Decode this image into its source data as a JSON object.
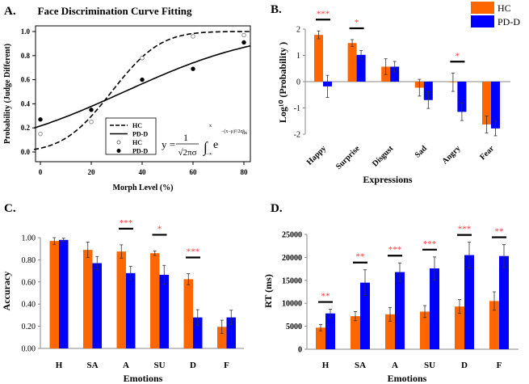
{
  "colors": {
    "hc": "#FF6600",
    "pd": "#0000FF",
    "sig": "#FF3333"
  },
  "chart_data": [
    {
      "panel": "A.",
      "type": "line",
      "title": "Face Discrimination Curve Fitting",
      "xlabel": "Morph Level (%)",
      "ylabel": "Probability (Judge Different)",
      "xlim": [
        -3,
        83
      ],
      "ylim": [
        -0.08,
        1.03
      ],
      "xticks": [
        0,
        20,
        40,
        60,
        80
      ],
      "yticks": [
        "0.0",
        "0.2",
        "0.4",
        "0.6",
        "0.8",
        "1.0"
      ],
      "formula": {
        "lhs": "y =",
        "num": "1",
        "den": "√2πσ",
        "upper": "x",
        "lower": "−∞",
        "base": "e",
        "exp": "−(x−μ)²/2σ²",
        "dx": "dx"
      },
      "legend": [
        "HC",
        "PD-D",
        "HC",
        "PD-D"
      ],
      "fits": [
        {
          "name": "HC",
          "mu": 28,
          "sigma": 15,
          "style": "dashed"
        },
        {
          "name": "PD-D",
          "mu": 33,
          "sigma": 42,
          "style": "solid"
        }
      ],
      "points": [
        {
          "name": "HC",
          "marker": "open",
          "x": [
            0,
            20,
            40,
            60,
            80
          ],
          "y": [
            0.15,
            0.25,
            0.78,
            0.96,
            0.97
          ]
        },
        {
          "name": "PD-D",
          "marker": "filled",
          "x": [
            0,
            20,
            40,
            60,
            80
          ],
          "y": [
            0.27,
            0.35,
            0.6,
            0.69,
            0.91
          ]
        }
      ]
    },
    {
      "panel": "B.",
      "type": "bar",
      "xlabel": "Expressions",
      "ylabel": "Log¹⁰ (Probability )",
      "ylim": [
        -2,
        2
      ],
      "yticks": [
        "-2",
        "-1",
        "0",
        "1",
        "2"
      ],
      "categories": [
        "Happy",
        "Surprise",
        "Disgust",
        "Sad",
        "Angry",
        "Fear"
      ],
      "legend": [
        "HC",
        "PD-D"
      ],
      "series": [
        {
          "name": "HC",
          "values": [
            1.78,
            1.47,
            0.57,
            -0.23,
            -0.02,
            -1.63
          ],
          "errors": [
            0.15,
            0.13,
            0.3,
            0.32,
            0.35,
            0.32
          ]
        },
        {
          "name": "PD-D",
          "values": [
            -0.18,
            1.02,
            0.57,
            -0.7,
            -1.15,
            -1.78
          ],
          "errors": [
            0.42,
            0.16,
            0.2,
            0.32,
            0.33,
            0.28
          ]
        }
      ],
      "significance": [
        "***",
        "*",
        "",
        "",
        "*",
        ""
      ]
    },
    {
      "panel": "C.",
      "type": "bar",
      "xlabel": "Emotions",
      "ylabel": "Accuracy",
      "ylim": [
        0,
        1
      ],
      "yticks": [
        "0.00",
        "0.20",
        "0.40",
        "0.60",
        "0.80",
        "1.00"
      ],
      "categories": [
        "H",
        "SA",
        "A",
        "SU",
        "D",
        "F"
      ],
      "series": [
        {
          "name": "HC",
          "values": [
            0.97,
            0.89,
            0.875,
            0.86,
            0.625,
            0.195
          ],
          "errors": [
            0.03,
            0.07,
            0.06,
            0.02,
            0.05,
            0.06
          ]
        },
        {
          "name": "PD-D",
          "values": [
            0.98,
            0.77,
            0.68,
            0.665,
            0.28,
            0.28
          ],
          "errors": [
            0.015,
            0.06,
            0.06,
            0.085,
            0.07,
            0.065
          ]
        }
      ],
      "significance": [
        "",
        "",
        "***",
        "*",
        "***",
        ""
      ]
    },
    {
      "panel": "D.",
      "type": "bar",
      "xlabel": "Emotions",
      "ylabel": "RT (ms)",
      "ylim": [
        0,
        25000
      ],
      "yticks": [
        "0",
        "5000",
        "10000",
        "15000",
        "20000",
        "25000"
      ],
      "categories": [
        "H",
        "SA",
        "A",
        "SU",
        "D",
        "F"
      ],
      "series": [
        {
          "name": "HC",
          "values": [
            4700,
            7200,
            7600,
            8200,
            9300,
            10500
          ],
          "errors": [
            700,
            1000,
            1500,
            1300,
            1500,
            2000
          ]
        },
        {
          "name": "PD-D",
          "values": [
            7800,
            14500,
            16800,
            17600,
            20500,
            20300
          ],
          "errors": [
            900,
            2800,
            2000,
            2500,
            2800,
            2500
          ]
        }
      ],
      "significance": [
        "**",
        "**",
        "***",
        "***",
        "***",
        "**"
      ]
    }
  ]
}
